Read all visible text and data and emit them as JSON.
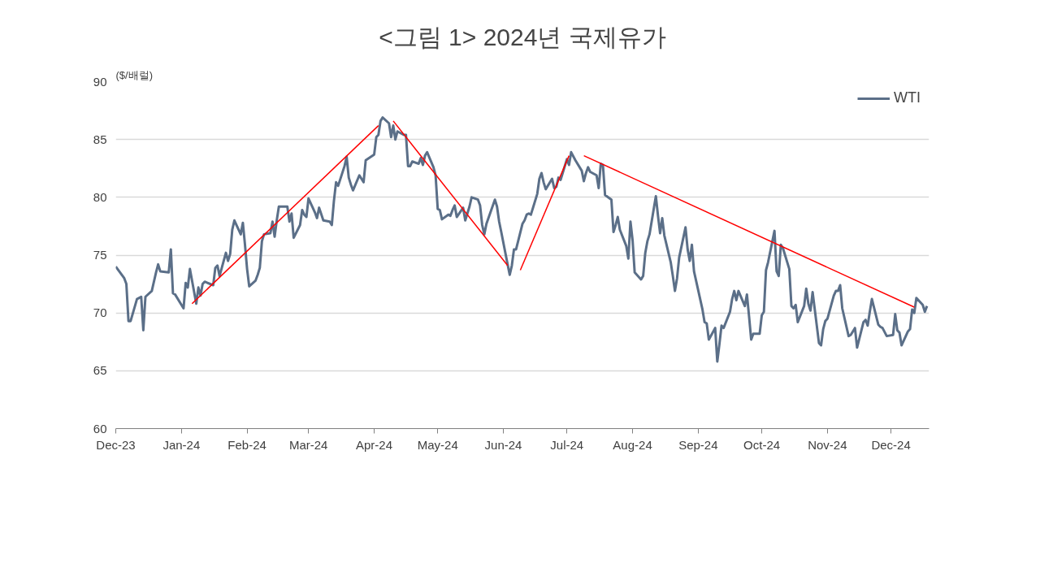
{
  "chart_data": {
    "type": "line",
    "title": "<그림 1> 2024년 국제유가",
    "ylabel": "($/배럴)",
    "xlim": [
      "2023-12-01",
      "2024-12-19"
    ],
    "xticks": [
      {
        "value": "2023-12-01",
        "label": "Dec-23"
      },
      {
        "value": "2024-01-01",
        "label": "Jan-24"
      },
      {
        "value": "2024-02-01",
        "label": "Feb-24"
      },
      {
        "value": "2024-03-01",
        "label": "Mar-24"
      },
      {
        "value": "2024-04-01",
        "label": "Apr-24"
      },
      {
        "value": "2024-05-01",
        "label": "May-24"
      },
      {
        "value": "2024-06-01",
        "label": "Jun-24"
      },
      {
        "value": "2024-07-01",
        "label": "Jul-24"
      },
      {
        "value": "2024-08-01",
        "label": "Aug-24"
      },
      {
        "value": "2024-09-01",
        "label": "Sep-24"
      },
      {
        "value": "2024-10-01",
        "label": "Oct-24"
      },
      {
        "value": "2024-11-01",
        "label": "Nov-24"
      },
      {
        "value": "2024-12-01",
        "label": "Dec-24"
      }
    ],
    "ylim": [
      60,
      90
    ],
    "yticks": [
      60,
      65,
      70,
      75,
      80,
      85,
      90
    ],
    "grid": "y",
    "legend": "top right",
    "series": [
      {
        "name": "WTI",
        "color": "#5b6f88",
        "x": [
          "2023-12-01",
          "2023-12-05",
          "2023-12-06",
          "2023-12-07",
          "2023-12-08",
          "2023-12-11",
          "2023-12-13",
          "2023-12-14",
          "2023-12-15",
          "2023-12-18",
          "2023-12-20",
          "2023-12-21",
          "2023-12-22",
          "2023-12-26",
          "2023-12-27",
          "2023-12-28",
          "2023-12-29",
          "2024-01-02",
          "2024-01-03",
          "2024-01-04",
          "2024-01-05",
          "2024-01-08",
          "2024-01-09",
          "2024-01-10",
          "2024-01-11",
          "2024-01-12",
          "2024-01-16",
          "2024-01-17",
          "2024-01-18",
          "2024-01-19",
          "2024-01-22",
          "2024-01-23",
          "2024-01-24",
          "2024-01-25",
          "2024-01-26",
          "2024-01-29",
          "2024-01-30",
          "2024-01-31",
          "2024-02-01",
          "2024-02-02",
          "2024-02-05",
          "2024-02-06",
          "2024-02-07",
          "2024-02-08",
          "2024-02-09",
          "2024-02-12",
          "2024-02-13",
          "2024-02-14",
          "2024-02-15",
          "2024-02-16",
          "2024-02-20",
          "2024-02-21",
          "2024-02-22",
          "2024-02-23",
          "2024-02-26",
          "2024-02-27",
          "2024-02-28",
          "2024-02-29",
          "2024-03-01",
          "2024-03-04",
          "2024-03-05",
          "2024-03-06",
          "2024-03-08",
          "2024-03-11",
          "2024-03-12",
          "2024-03-13",
          "2024-03-14",
          "2024-03-15",
          "2024-03-18",
          "2024-03-19",
          "2024-03-20",
          "2024-03-21",
          "2024-03-22",
          "2024-03-25",
          "2024-03-26",
          "2024-03-27",
          "2024-03-28",
          "2024-04-01",
          "2024-04-02",
          "2024-04-03",
          "2024-04-04",
          "2024-04-05",
          "2024-04-08",
          "2024-04-09",
          "2024-04-10",
          "2024-04-11",
          "2024-04-12",
          "2024-04-15",
          "2024-04-16",
          "2024-04-17",
          "2024-04-18",
          "2024-04-19",
          "2024-04-22",
          "2024-04-23",
          "2024-04-24",
          "2024-04-25",
          "2024-04-26",
          "2024-04-29",
          "2024-04-30",
          "2024-05-01",
          "2024-05-02",
          "2024-05-03",
          "2024-05-06",
          "2024-05-07",
          "2024-05-08",
          "2024-05-09",
          "2024-05-10",
          "2024-05-13",
          "2024-05-14",
          "2024-05-15",
          "2024-05-16",
          "2024-05-17",
          "2024-05-20",
          "2024-05-21",
          "2024-05-22",
          "2024-05-23",
          "2024-05-24",
          "2024-05-28",
          "2024-05-29",
          "2024-05-30",
          "2024-05-31",
          "2024-06-03",
          "2024-06-04",
          "2024-06-05",
          "2024-06-06",
          "2024-06-07",
          "2024-06-10",
          "2024-06-11",
          "2024-06-12",
          "2024-06-13",
          "2024-06-14",
          "2024-06-17",
          "2024-06-18",
          "2024-06-19",
          "2024-06-20",
          "2024-06-21",
          "2024-06-24",
          "2024-06-25",
          "2024-06-26",
          "2024-06-27",
          "2024-06-28",
          "2024-07-01",
          "2024-07-02",
          "2024-07-03",
          "2024-07-05",
          "2024-07-08",
          "2024-07-09",
          "2024-07-10",
          "2024-07-11",
          "2024-07-12",
          "2024-07-15",
          "2024-07-16",
          "2024-07-17",
          "2024-07-18",
          "2024-07-19",
          "2024-07-22",
          "2024-07-23",
          "2024-07-24",
          "2024-07-25",
          "2024-07-26",
          "2024-07-29",
          "2024-07-30",
          "2024-07-31",
          "2024-08-01",
          "2024-08-02",
          "2024-08-05",
          "2024-08-06",
          "2024-08-07",
          "2024-08-08",
          "2024-08-09",
          "2024-08-12",
          "2024-08-13",
          "2024-08-14",
          "2024-08-15",
          "2024-08-16",
          "2024-08-19",
          "2024-08-20",
          "2024-08-21",
          "2024-08-22",
          "2024-08-23",
          "2024-08-26",
          "2024-08-27",
          "2024-08-28",
          "2024-08-29",
          "2024-08-30",
          "2024-09-03",
          "2024-09-04",
          "2024-09-05",
          "2024-09-06",
          "2024-09-09",
          "2024-09-10",
          "2024-09-11",
          "2024-09-12",
          "2024-09-13",
          "2024-09-16",
          "2024-09-17",
          "2024-09-18",
          "2024-09-19",
          "2024-09-20",
          "2024-09-23",
          "2024-09-24",
          "2024-09-25",
          "2024-09-26",
          "2024-09-27",
          "2024-09-30",
          "2024-10-01",
          "2024-10-02",
          "2024-10-03",
          "2024-10-04",
          "2024-10-07",
          "2024-10-08",
          "2024-10-09",
          "2024-10-10",
          "2024-10-11",
          "2024-10-14",
          "2024-10-15",
          "2024-10-16",
          "2024-10-17",
          "2024-10-18",
          "2024-10-21",
          "2024-10-22",
          "2024-10-23",
          "2024-10-24",
          "2024-10-25",
          "2024-10-28",
          "2024-10-29",
          "2024-10-30",
          "2024-10-31",
          "2024-11-01",
          "2024-11-04",
          "2024-11-05",
          "2024-11-06",
          "2024-11-07",
          "2024-11-08",
          "2024-11-11",
          "2024-11-12",
          "2024-11-13",
          "2024-11-14",
          "2024-11-15",
          "2024-11-18",
          "2024-11-19",
          "2024-11-20",
          "2024-11-21",
          "2024-11-22",
          "2024-11-25",
          "2024-11-26",
          "2024-11-27",
          "2024-11-29",
          "2024-12-02",
          "2024-12-03",
          "2024-12-04",
          "2024-12-05",
          "2024-12-06",
          "2024-12-09",
          "2024-12-10",
          "2024-12-11",
          "2024-12-12",
          "2024-12-13",
          "2024-12-16",
          "2024-12-17",
          "2024-12-18"
        ],
        "values": [
          74.0,
          73.0,
          72.5,
          69.3,
          69.3,
          71.2,
          71.4,
          68.5,
          71.4,
          71.9,
          73.5,
          74.2,
          73.6,
          73.5,
          75.5,
          71.7,
          71.6,
          70.4,
          72.6,
          72.2,
          73.8,
          70.8,
          72.2,
          71.5,
          72.5,
          72.7,
          72.4,
          73.9,
          74.1,
          73.2,
          75.2,
          74.5,
          75.1,
          77.2,
          78.0,
          76.8,
          77.8,
          75.9,
          73.8,
          72.3,
          72.8,
          73.3,
          73.9,
          76.2,
          76.8,
          76.9,
          77.9,
          76.6,
          78.0,
          79.2,
          79.2,
          77.9,
          78.6,
          76.5,
          77.6,
          78.9,
          78.5,
          78.3,
          79.9,
          78.7,
          78.2,
          79.1,
          78.0,
          77.9,
          77.6,
          79.7,
          81.3,
          81.0,
          82.7,
          83.5,
          81.7,
          81.1,
          80.6,
          81.9,
          81.6,
          81.3,
          83.2,
          83.7,
          85.2,
          85.4,
          86.6,
          86.9,
          86.4,
          85.2,
          86.2,
          85.0,
          85.7,
          85.4,
          85.4,
          82.7,
          82.7,
          83.1,
          82.9,
          83.4,
          82.8,
          83.6,
          83.9,
          82.6,
          81.9,
          79.0,
          78.9,
          78.1,
          78.5,
          78.4,
          78.9,
          79.3,
          78.3,
          79.1,
          78.0,
          78.6,
          79.2,
          80.0,
          79.8,
          79.3,
          77.6,
          76.8,
          77.7,
          79.8,
          79.2,
          77.9,
          77.0,
          74.2,
          73.3,
          74.1,
          75.5,
          75.5,
          77.7,
          78.0,
          78.5,
          78.6,
          78.5,
          80.3,
          81.6,
          82.1,
          81.3,
          80.7,
          81.6,
          80.8,
          80.9,
          81.7,
          81.5,
          83.3,
          82.8,
          83.9,
          83.2,
          82.3,
          81.4,
          82.1,
          82.6,
          82.2,
          81.9,
          80.8,
          82.9,
          82.8,
          80.2,
          79.8,
          77.0,
          77.6,
          78.3,
          77.2,
          75.8,
          74.7,
          77.9,
          76.3,
          73.5,
          72.9,
          73.2,
          75.2,
          76.2,
          76.8,
          80.1,
          78.4,
          76.9,
          78.2,
          76.7,
          74.4,
          73.2,
          71.9,
          73.0,
          74.8,
          77.4,
          75.5,
          74.5,
          75.9,
          73.6,
          70.3,
          69.2,
          69.1,
          67.7,
          68.7,
          65.8,
          67.3,
          68.9,
          68.7,
          70.1,
          71.2,
          71.9,
          71.1,
          71.9,
          70.6,
          71.6,
          69.7,
          67.7,
          68.2,
          68.2,
          69.8,
          70.1,
          73.7,
          74.4,
          77.1,
          73.6,
          73.2,
          75.9,
          75.6,
          73.8,
          70.6,
          70.4,
          70.7,
          69.2,
          70.6,
          72.1,
          70.8,
          70.2,
          71.8,
          67.4,
          67.2,
          68.6,
          69.3,
          69.5,
          71.5,
          71.9,
          71.9,
          72.4,
          70.4,
          68.0,
          68.1,
          68.4,
          68.7,
          67.0,
          69.2,
          69.4,
          68.9,
          70.1,
          71.2,
          69.0,
          68.8,
          68.7,
          68.0,
          68.1,
          69.9,
          68.5,
          68.3,
          67.2,
          68.4,
          68.6,
          70.3,
          70.0,
          71.3,
          70.7,
          70.1,
          70.6
        ]
      },
      {
        "color": "#ff0000",
        "x": [
          "2024-01-06",
          "2024-04-03"
        ],
        "values": [
          70.8,
          86.2
        ]
      },
      {
        "color": "#ff0000",
        "x": [
          "2024-04-10",
          "2024-06-03"
        ],
        "values": [
          86.6,
          74.1
        ]
      },
      {
        "color": "#ff0000",
        "x": [
          "2024-06-09",
          "2024-07-02"
        ],
        "values": [
          73.7,
          83.6
        ]
      },
      {
        "color": "#ff0000",
        "x": [
          "2024-07-09",
          "2024-12-12"
        ],
        "values": [
          83.6,
          70.5
        ]
      }
    ]
  }
}
